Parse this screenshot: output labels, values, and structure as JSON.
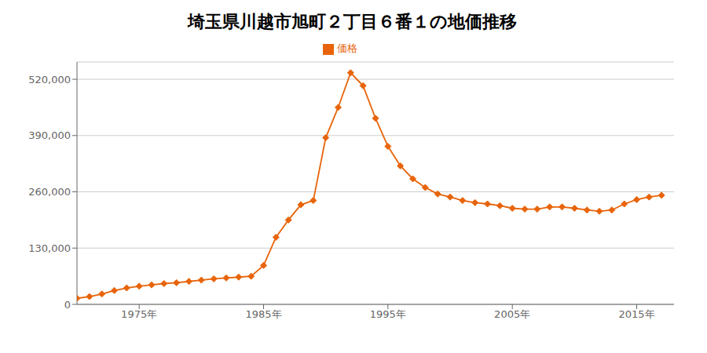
{
  "chart_data": {
    "type": "line",
    "title": "埼玉県川越市旭町２丁目６番１の地価推移",
    "x": [
      1970,
      1971,
      1972,
      1973,
      1974,
      1975,
      1976,
      1977,
      1978,
      1979,
      1980,
      1981,
      1982,
      1983,
      1984,
      1985,
      1986,
      1987,
      1988,
      1989,
      1990,
      1991,
      1992,
      1993,
      1994,
      1995,
      1996,
      1997,
      1998,
      1999,
      2000,
      2001,
      2002,
      2003,
      2004,
      2005,
      2006,
      2007,
      2008,
      2009,
      2010,
      2011,
      2012,
      2013,
      2014,
      2015,
      2016,
      2017
    ],
    "series": [
      {
        "name": "価格",
        "color": "#e8640a",
        "marker": "diamond",
        "values": [
          14000,
          18000,
          24000,
          32000,
          38000,
          42000,
          45000,
          48000,
          50000,
          53000,
          56000,
          59000,
          61000,
          63000,
          65000,
          90000,
          155000,
          195000,
          230000,
          240000,
          385000,
          455000,
          535000,
          505000,
          430000,
          365000,
          320000,
          290000,
          270000,
          255000,
          248000,
          240000,
          235000,
          232000,
          228000,
          222000,
          220000,
          220000,
          225000,
          225000,
          222000,
          218000,
          215000,
          218000,
          232000,
          242000,
          248000,
          252000
        ]
      }
    ],
    "xlim": [
      1970,
      2018
    ],
    "xticks": [
      {
        "value": 1975,
        "label": "1975年"
      },
      {
        "value": 1985,
        "label": "1985年"
      },
      {
        "value": 1995,
        "label": "1995年"
      },
      {
        "value": 2005,
        "label": "2005年"
      },
      {
        "value": 2015,
        "label": "2015年"
      }
    ],
    "ylim": [
      0,
      560000
    ],
    "yticks": [
      0,
      {
        "value": 130000,
        "label": "130,000"
      },
      {
        "value": 260000,
        "label": "260,000"
      },
      {
        "value": 390000,
        "label": "390,000"
      },
      {
        "value": 520000,
        "label": "520,000"
      }
    ],
    "grid": "y",
    "legend": "top"
  }
}
